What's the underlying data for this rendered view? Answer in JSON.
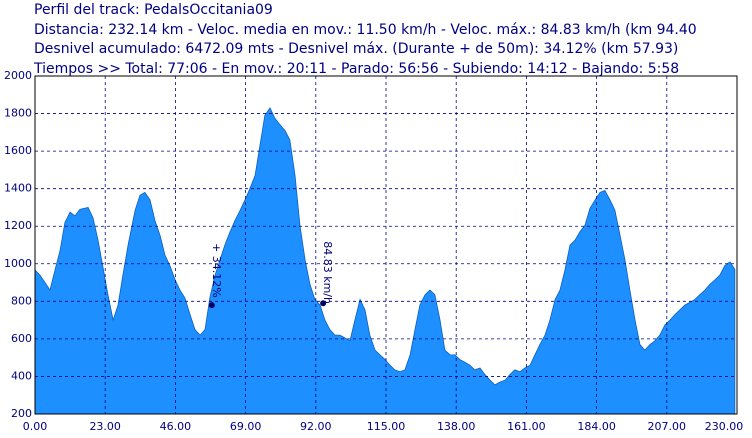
{
  "chart_data": {
    "type": "area",
    "title": "Perfil del track: PedalsOccitania09",
    "info": [
      "Distancia: 232.14 km - Veloc. media en mov.: 11.50 km/h - Veloc. máx.: 84.83 km/h (km 94.40",
      "Desnivel acumulado: 6472.09 mts - Desnivel máx. (Durante + de 50m): 34.12% (km 57.93)",
      "Tiempos >> Total: 77:06 - En mov.: 20:11 - Parado: 56:56 - Subiendo: 14:12 - Bajando: 5:58"
    ],
    "color": "#1e8fff",
    "grid": true,
    "xlim": [
      0,
      230
    ],
    "ylim": [
      200,
      2000
    ],
    "xticks": [
      {
        "value": 0,
        "label": "0.00"
      },
      {
        "value": 23,
        "label": "23.00"
      },
      {
        "value": 46,
        "label": "46.00"
      },
      {
        "value": 69,
        "label": "69.00"
      },
      {
        "value": 92,
        "label": "92.00"
      },
      {
        "value": 115,
        "label": "115.00"
      },
      {
        "value": 138,
        "label": "138.00"
      },
      {
        "value": 161,
        "label": "161.00"
      },
      {
        "value": 184,
        "label": "184.00"
      },
      {
        "value": 207,
        "label": "207.00"
      },
      {
        "value": 230,
        "label": "230.00"
      }
    ],
    "yticks": [
      200,
      400,
      600,
      800,
      1000,
      1200,
      1400,
      1600,
      1800,
      2000
    ],
    "x": [
      0,
      1.6,
      3.3,
      4.9,
      6.6,
      8.2,
      9.8,
      11.5,
      13.1,
      14.7,
      17.4,
      19.0,
      20.6,
      22.3,
      23.9,
      25.6,
      27.2,
      28.8,
      30.5,
      32.8,
      34.4,
      36.0,
      37.7,
      39.3,
      41.0,
      42.6,
      44.2,
      45.9,
      47.5,
      49.1,
      50.8,
      52.4,
      54.1,
      55.7,
      57.3,
      59.0,
      60.6,
      62.2,
      63.9,
      65.5,
      67.2,
      68.8,
      70.4,
      72.1,
      73.7,
      75.3,
      77.0,
      78.6,
      80.3,
      81.9,
      83.5,
      85.2,
      86.8,
      88.5,
      90.1,
      91.7,
      93.4,
      95.0,
      96.6,
      98.3,
      99.9,
      101.6,
      103.2,
      104.8,
      106.5,
      108.1,
      109.7,
      111.4,
      113.0,
      114.7,
      116.3,
      117.9,
      119.6,
      121.2,
      122.9,
      124.5,
      126.1,
      127.8,
      129.4,
      131.0,
      132.7,
      134.3,
      136.0,
      137.6,
      139.2,
      140.9,
      142.5,
      144.1,
      145.8,
      147.4,
      149.1,
      150.7,
      152.3,
      154.0,
      155.6,
      157.2,
      158.9,
      160.5,
      162.2,
      163.8,
      165.4,
      167.1,
      168.7,
      170.4,
      172.0,
      173.6,
      175.3,
      176.9,
      178.5,
      180.2,
      181.8,
      183.5,
      185.1,
      186.7,
      188.4,
      190.0,
      191.7,
      193.3,
      194.9,
      196.6,
      198.2,
      199.8,
      201.5,
      203.1,
      204.7,
      206.4,
      208.0,
      209.7,
      211.3,
      212.9,
      214.6,
      216.2,
      217.8,
      219.5,
      221.1,
      222.8,
      224.4,
      226.0,
      227.7,
      229.3
    ],
    "values": [
      967,
      940,
      900,
      860,
      970,
      1070,
      1220,
      1275,
      1255,
      1290,
      1300,
      1245,
      1130,
      980,
      835,
      700,
      780,
      940,
      1100,
      1285,
      1365,
      1380,
      1340,
      1230,
      1150,
      1045,
      990,
      915,
      860,
      818,
      730,
      650,
      620,
      650,
      820,
      940,
      1020,
      1100,
      1170,
      1230,
      1285,
      1340,
      1400,
      1470,
      1630,
      1790,
      1830,
      1775,
      1740,
      1710,
      1660,
      1470,
      1205,
      1020,
      890,
      810,
      780,
      700,
      650,
      620,
      620,
      605,
      590,
      700,
      810,
      755,
      620,
      540,
      515,
      490,
      460,
      435,
      425,
      435,
      515,
      650,
      780,
      835,
      860,
      835,
      700,
      540,
      515,
      515,
      490,
      475,
      460,
      435,
      445,
      410,
      380,
      355,
      370,
      380,
      410,
      435,
      425,
      445,
      460,
      515,
      570,
      620,
      700,
      810,
      860,
      965,
      1100,
      1125,
      1170,
      1205,
      1295,
      1340,
      1380,
      1390,
      1340,
      1285,
      1150,
      1020,
      860,
      700,
      570,
      540,
      570,
      590,
      620,
      675,
      700,
      730,
      755,
      780,
      795,
      810,
      835,
      860,
      890,
      915,
      940,
      990,
      1010,
      970
    ],
    "annotations": [
      {
        "x": 57.93,
        "y": 780,
        "label": "+ 34.12%"
      },
      {
        "x": 94.4,
        "y": 790,
        "label": "84.83 km/h"
      }
    ]
  }
}
